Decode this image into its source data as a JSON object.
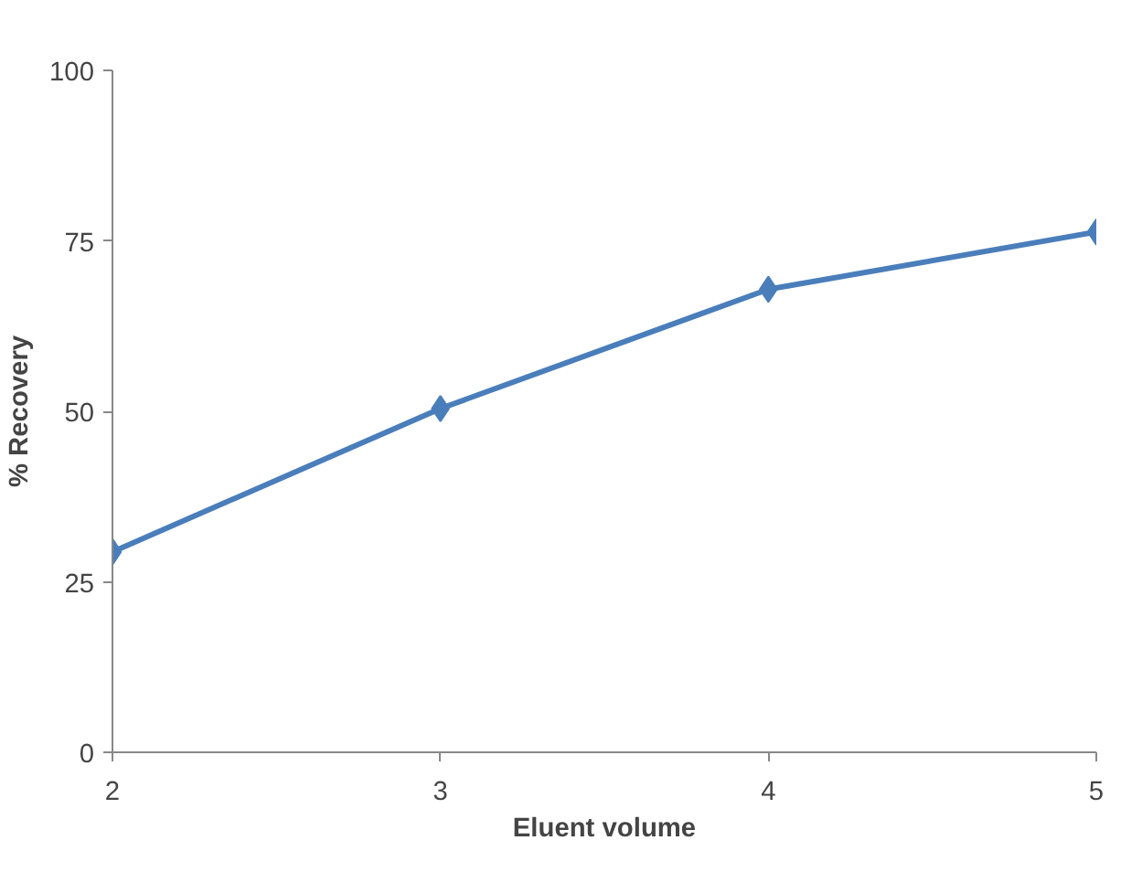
{
  "chart_data": {
    "type": "line",
    "xlabel": "Eluent volume",
    "ylabel": "% Recovery",
    "x": [
      2,
      3,
      4,
      5
    ],
    "series": [
      {
        "color": "#4a7ebb",
        "values": [
          29.4,
          50.4,
          67.9,
          76.3
        ]
      }
    ],
    "xlim": [
      2,
      5
    ],
    "xticks": [
      2,
      3,
      4,
      5
    ],
    "ylim": [
      0,
      100
    ],
    "yticks": [
      0,
      25,
      50,
      75,
      100
    ],
    "grid": false,
    "marker": "diamond",
    "line_style": "solid"
  }
}
